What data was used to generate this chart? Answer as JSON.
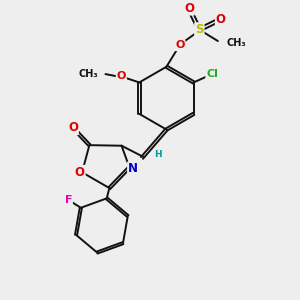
{
  "bg_color": "#eeeeee",
  "bond_color": "#111111",
  "bond_width": 1.4,
  "dbo": 0.055,
  "fs": 7.5,
  "colors": {
    "C": "#111111",
    "O": "#dd0000",
    "N": "#0000cc",
    "S": "#bbbb00",
    "Cl": "#22aa22",
    "F": "#ee00bb",
    "H": "#009999"
  }
}
